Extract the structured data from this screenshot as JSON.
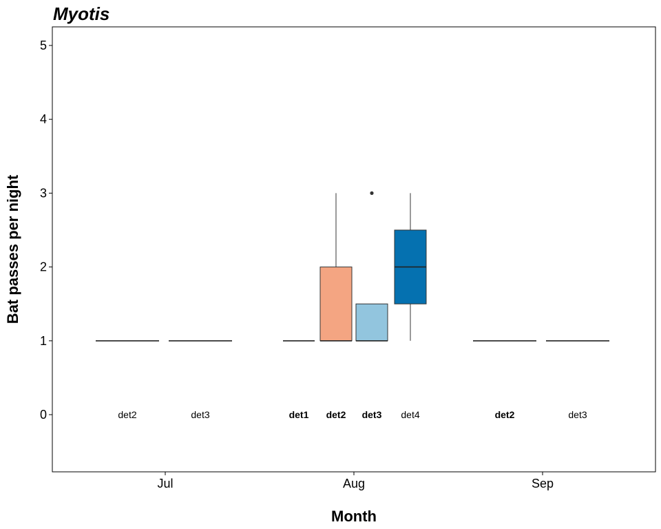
{
  "chart_data": {
    "type": "box",
    "title": "Myotis",
    "xlabel": "Month",
    "ylabel": "Bat passes per night",
    "ylim": [
      -0.75,
      5.25
    ],
    "yticks": [
      0,
      1,
      2,
      3,
      4,
      5
    ],
    "categories": [
      "Jul",
      "Aug",
      "Sep"
    ],
    "grid": false,
    "legend": "none",
    "groups": [
      {
        "month": "Jul",
        "detector": "det2",
        "label_bold": false,
        "fill": "none",
        "min": 1,
        "q1": 1,
        "median": 1,
        "q3": 1,
        "max": 1,
        "outliers": []
      },
      {
        "month": "Jul",
        "detector": "det3",
        "label_bold": false,
        "fill": "none",
        "min": 1,
        "q1": 1,
        "median": 1,
        "q3": 1,
        "max": 1,
        "outliers": []
      },
      {
        "month": "Aug",
        "detector": "det1",
        "label_bold": true,
        "fill": "none",
        "min": 1,
        "q1": 1,
        "median": 1,
        "q3": 1,
        "max": 1,
        "outliers": []
      },
      {
        "month": "Aug",
        "detector": "det2",
        "label_bold": true,
        "fill": "#f4a582",
        "min": 1,
        "q1": 1,
        "median": 1,
        "q3": 2,
        "max": 3,
        "outliers": []
      },
      {
        "month": "Aug",
        "detector": "det3",
        "label_bold": true,
        "fill": "#92c5de",
        "min": 1,
        "q1": 1,
        "median": 1,
        "q3": 1.5,
        "max": 1.5,
        "outliers": [
          3
        ]
      },
      {
        "month": "Aug",
        "detector": "det4",
        "label_bold": false,
        "fill": "#0571b0",
        "min": 1,
        "q1": 1.5,
        "median": 2,
        "q3": 2.5,
        "max": 3,
        "outliers": []
      },
      {
        "month": "Sep",
        "detector": "det2",
        "label_bold": true,
        "fill": "none",
        "min": 1,
        "q1": 1,
        "median": 1,
        "q3": 1,
        "max": 1,
        "outliers": []
      },
      {
        "month": "Sep",
        "detector": "det3",
        "label_bold": false,
        "fill": "none",
        "min": 1,
        "q1": 1,
        "median": 1,
        "q3": 1,
        "max": 1,
        "outliers": []
      }
    ]
  }
}
